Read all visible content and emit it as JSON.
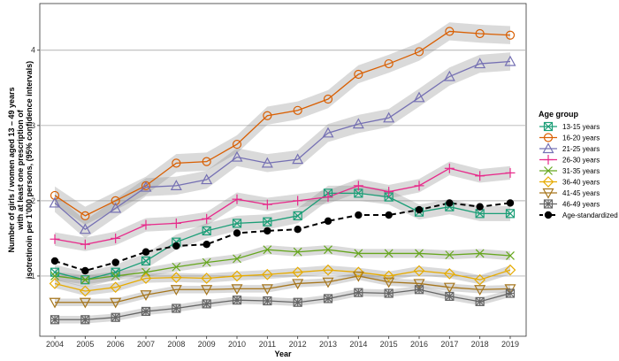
{
  "chart_data": {
    "type": "line",
    "title": "",
    "xlabel": "Year",
    "ylabel_lines": [
      "Number of girls / women aged 13 – 49 years",
      "with at least one prescription of",
      "isotretinoin per 1'000 persons, (95% confidence intervals)"
    ],
    "x": [
      2004,
      2005,
      2006,
      2007,
      2008,
      2009,
      2010,
      2011,
      2012,
      2013,
      2014,
      2015,
      2016,
      2017,
      2018,
      2019
    ],
    "x_tick_labels": [
      "2004",
      "2005",
      "2006",
      "2007",
      "2008",
      "2009",
      "2010",
      "2011",
      "2012",
      "2013",
      "2014",
      "2015",
      "2016",
      "2017",
      "2018",
      "2019"
    ],
    "ylim": [
      0.2,
      4.62
    ],
    "y_ticks": [
      1,
      2,
      3,
      4
    ],
    "y_tick_labels": [
      "1",
      "2",
      "3",
      "4"
    ],
    "grid": true,
    "legend_title": "Age group",
    "legend_position": "right",
    "series": [
      {
        "name": "13-15 years",
        "color": "#1b9e77",
        "marker": "square-x",
        "dashed": false,
        "ci": 0.1,
        "values": [
          1.05,
          0.95,
          1.05,
          1.2,
          1.45,
          1.6,
          1.7,
          1.72,
          1.8,
          2.1,
          2.1,
          2.05,
          1.85,
          1.92,
          1.83,
          1.83
        ]
      },
      {
        "name": "16-20 years",
        "color": "#d95f02",
        "marker": "circle",
        "dashed": false,
        "ci": 0.12,
        "values": [
          2.07,
          1.8,
          2.0,
          2.2,
          2.5,
          2.52,
          2.75,
          3.13,
          3.2,
          3.35,
          3.68,
          3.82,
          3.98,
          4.25,
          4.22,
          4.2
        ]
      },
      {
        "name": "21-25 years",
        "color": "#7570b3",
        "marker": "triangle",
        "dashed": false,
        "ci": 0.12,
        "values": [
          1.97,
          1.62,
          1.9,
          2.18,
          2.2,
          2.28,
          2.58,
          2.5,
          2.55,
          2.9,
          3.02,
          3.1,
          3.37,
          3.65,
          3.82,
          3.85
        ]
      },
      {
        "name": "26-30 years",
        "color": "#e7298a",
        "marker": "plus",
        "dashed": false,
        "ci": 0.09,
        "values": [
          1.49,
          1.42,
          1.5,
          1.68,
          1.7,
          1.76,
          2.02,
          1.95,
          2.0,
          2.05,
          2.2,
          2.12,
          2.2,
          2.43,
          2.33,
          2.37
        ]
      },
      {
        "name": "31-35 years",
        "color": "#66a61e",
        "marker": "x",
        "dashed": false,
        "ci": 0.06,
        "values": [
          1.0,
          0.95,
          1.0,
          1.05,
          1.12,
          1.18,
          1.23,
          1.35,
          1.32,
          1.35,
          1.3,
          1.3,
          1.3,
          1.28,
          1.3,
          1.27
        ]
      },
      {
        "name": "36-40 years",
        "color": "#e6ab02",
        "marker": "diamond",
        "dashed": false,
        "ci": 0.06,
        "values": [
          0.9,
          0.8,
          0.85,
          0.97,
          0.98,
          0.97,
          1.0,
          1.02,
          1.05,
          1.08,
          1.05,
          1.0,
          1.07,
          1.03,
          0.95,
          1.08
        ]
      },
      {
        "name": "41-45 years",
        "color": "#a6761d",
        "marker": "triangle-down",
        "dashed": false,
        "ci": 0.05,
        "values": [
          0.65,
          0.65,
          0.65,
          0.75,
          0.82,
          0.82,
          0.83,
          0.83,
          0.9,
          0.92,
          1.0,
          0.92,
          0.9,
          0.85,
          0.82,
          0.83
        ]
      },
      {
        "name": "46-49 years",
        "color": "#666666",
        "marker": "square-cross",
        "dashed": false,
        "ci": 0.05,
        "values": [
          0.42,
          0.42,
          0.45,
          0.53,
          0.57,
          0.63,
          0.68,
          0.67,
          0.65,
          0.7,
          0.78,
          0.77,
          0.82,
          0.73,
          0.66,
          0.77
        ]
      },
      {
        "name": "Age-standardized",
        "color": "#000000",
        "marker": "dot",
        "dashed": true,
        "ci": 0,
        "values": [
          1.2,
          1.07,
          1.18,
          1.32,
          1.4,
          1.42,
          1.57,
          1.6,
          1.62,
          1.73,
          1.81,
          1.81,
          1.88,
          1.97,
          1.92,
          1.97
        ]
      }
    ]
  }
}
